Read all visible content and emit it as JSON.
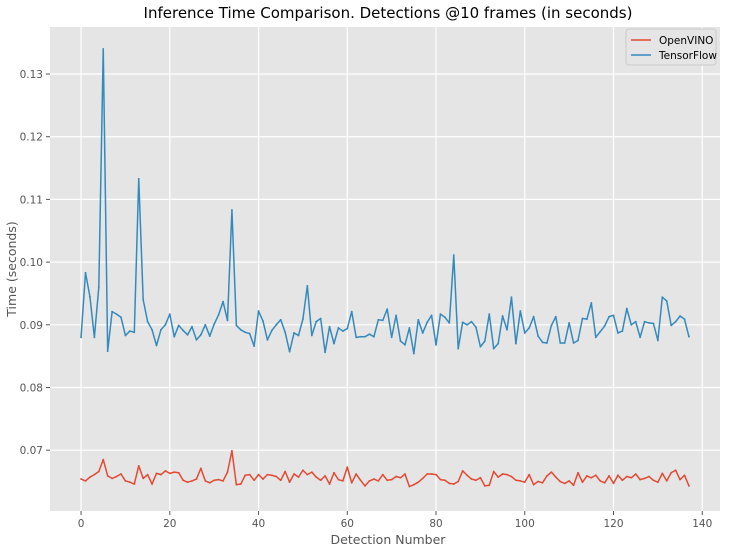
{
  "chart_data": {
    "type": "line",
    "title": "Inference Time Comparison. Detections @10 frames (in seconds)",
    "xlabel": "Detection Number",
    "ylabel": "Time (seconds)",
    "xlim": [
      -7,
      144
    ],
    "ylim": [
      0.0603,
      0.1375
    ],
    "xticks": [
      0,
      20,
      40,
      60,
      80,
      100,
      120,
      140
    ],
    "yticks": [
      0.07,
      0.08,
      0.09,
      0.1,
      0.11,
      0.12,
      0.13
    ],
    "ytick_labels": [
      "0.07",
      "0.08",
      "0.09",
      "0.10",
      "0.11",
      "0.12",
      "0.13"
    ],
    "grid": true,
    "legend_position": "top-right",
    "series": [
      {
        "name": "OpenVINO",
        "color": "#E24A33",
        "x": [
          0,
          1,
          2,
          3,
          4,
          5,
          6,
          7,
          8,
          9,
          10,
          11,
          12,
          13,
          14,
          15,
          16,
          17,
          18,
          19,
          20,
          21,
          22,
          23,
          24,
          25,
          26,
          27,
          28,
          29,
          30,
          31,
          32,
          33,
          34,
          35,
          36,
          37,
          38,
          39,
          40,
          41,
          42,
          43,
          44,
          45,
          46,
          47,
          48,
          49,
          50,
          51,
          52,
          53,
          54,
          55,
          56,
          57,
          58,
          59,
          60,
          61,
          62,
          63,
          64,
          65,
          66,
          67,
          68,
          69,
          70,
          71,
          72,
          73,
          74,
          75,
          76,
          77,
          78,
          79,
          80,
          81,
          82,
          83,
          84,
          85,
          86,
          87,
          88,
          89,
          90,
          91,
          92,
          93,
          94,
          95,
          96,
          97,
          98,
          99,
          100,
          101,
          102,
          103,
          104,
          105,
          106,
          107,
          108,
          109,
          110,
          111,
          112,
          113,
          114,
          115,
          116,
          117,
          118,
          119,
          120,
          121,
          122,
          123,
          124,
          125,
          126,
          127,
          128,
          129,
          130,
          131,
          132,
          133,
          134,
          135,
          136,
          137
        ],
        "values": [
          0.0654,
          0.0651,
          0.0657,
          0.0661,
          0.0666,
          0.0685,
          0.0659,
          0.0655,
          0.0658,
          0.0662,
          0.0651,
          0.0649,
          0.0646,
          0.0675,
          0.0655,
          0.0661,
          0.0646,
          0.0663,
          0.0661,
          0.0667,
          0.0663,
          0.0665,
          0.0664,
          0.0652,
          0.0649,
          0.0651,
          0.0654,
          0.0671,
          0.0651,
          0.0648,
          0.0652,
          0.0653,
          0.0651,
          0.0665,
          0.0699,
          0.0645,
          0.0646,
          0.066,
          0.0661,
          0.0652,
          0.0661,
          0.0654,
          0.0661,
          0.066,
          0.0658,
          0.0652,
          0.0666,
          0.0649,
          0.0662,
          0.0657,
          0.0668,
          0.0661,
          0.0665,
          0.0657,
          0.0652,
          0.0659,
          0.0646,
          0.0664,
          0.0653,
          0.0651,
          0.0673,
          0.0648,
          0.0662,
          0.0652,
          0.0643,
          0.0651,
          0.0654,
          0.0651,
          0.0661,
          0.0652,
          0.0653,
          0.0658,
          0.0656,
          0.0662,
          0.0642,
          0.0645,
          0.0649,
          0.0655,
          0.0662,
          0.0662,
          0.0661,
          0.0653,
          0.0652,
          0.0647,
          0.0646,
          0.065,
          0.0667,
          0.066,
          0.0654,
          0.0652,
          0.0656,
          0.0643,
          0.0644,
          0.0666,
          0.0657,
          0.0662,
          0.0661,
          0.0658,
          0.0652,
          0.0651,
          0.0649,
          0.0661,
          0.0645,
          0.065,
          0.0648,
          0.0659,
          0.0665,
          0.0657,
          0.065,
          0.0647,
          0.0651,
          0.0644,
          0.0664,
          0.0649,
          0.0659,
          0.0656,
          0.066,
          0.0651,
          0.0648,
          0.0659,
          0.0647,
          0.066,
          0.0652,
          0.0658,
          0.0656,
          0.0662,
          0.0653,
          0.0655,
          0.0658,
          0.0652,
          0.0649,
          0.0663,
          0.0651,
          0.0664,
          0.0668,
          0.0653,
          0.066,
          0.0643
        ]
      },
      {
        "name": "TensorFlow",
        "color": "#348ABD",
        "x": [
          0,
          1,
          2,
          3,
          4,
          5,
          6,
          7,
          8,
          9,
          10,
          11,
          12,
          13,
          14,
          15,
          16,
          17,
          18,
          19,
          20,
          21,
          22,
          23,
          24,
          25,
          26,
          27,
          28,
          29,
          30,
          31,
          32,
          33,
          34,
          35,
          36,
          37,
          38,
          39,
          40,
          41,
          42,
          43,
          44,
          45,
          46,
          47,
          48,
          49,
          50,
          51,
          52,
          53,
          54,
          55,
          56,
          57,
          58,
          59,
          60,
          61,
          62,
          63,
          64,
          65,
          66,
          67,
          68,
          69,
          70,
          71,
          72,
          73,
          74,
          75,
          76,
          77,
          78,
          79,
          80,
          81,
          82,
          83,
          84,
          85,
          86,
          87,
          88,
          89,
          90,
          91,
          92,
          93,
          94,
          95,
          96,
          97,
          98,
          99,
          100,
          101,
          102,
          103,
          104,
          105,
          106,
          107,
          108,
          109,
          110,
          111,
          112,
          113,
          114,
          115,
          116,
          117,
          118,
          119,
          120,
          121,
          122,
          123,
          124,
          125,
          126,
          127,
          128,
          129,
          130,
          131,
          132,
          133,
          134,
          135,
          136,
          137
        ],
        "values": [
          0.088,
          0.0983,
          0.0945,
          0.088,
          0.096,
          0.134,
          0.0858,
          0.0921,
          0.0917,
          0.0912,
          0.0883,
          0.089,
          0.0888,
          0.1133,
          0.094,
          0.0905,
          0.0892,
          0.0867,
          0.0892,
          0.09,
          0.0917,
          0.0881,
          0.0899,
          0.0891,
          0.0884,
          0.0897,
          0.0876,
          0.0884,
          0.09,
          0.0882,
          0.0901,
          0.0916,
          0.0937,
          0.0907,
          0.1083,
          0.0899,
          0.0892,
          0.0888,
          0.0886,
          0.0866,
          0.0922,
          0.0906,
          0.0876,
          0.0891,
          0.09,
          0.0908,
          0.0888,
          0.0857,
          0.0887,
          0.0883,
          0.0909,
          0.0962,
          0.0883,
          0.0905,
          0.091,
          0.0856,
          0.0897,
          0.087,
          0.0895,
          0.089,
          0.0894,
          0.0921,
          0.088,
          0.0881,
          0.0881,
          0.0885,
          0.0881,
          0.0908,
          0.0907,
          0.0925,
          0.088,
          0.0915,
          0.0874,
          0.0868,
          0.0895,
          0.0854,
          0.0908,
          0.0887,
          0.0904,
          0.0915,
          0.0868,
          0.0917,
          0.0912,
          0.0903,
          0.1011,
          0.0862,
          0.0904,
          0.09,
          0.0905,
          0.0896,
          0.0865,
          0.0874,
          0.0917,
          0.0862,
          0.087,
          0.0914,
          0.0892,
          0.0944,
          0.087,
          0.0922,
          0.0887,
          0.0895,
          0.0913,
          0.0882,
          0.0872,
          0.0871,
          0.0899,
          0.0913,
          0.0871,
          0.0871,
          0.0903,
          0.0871,
          0.0875,
          0.091,
          0.0909,
          0.0935,
          0.088,
          0.0889,
          0.0898,
          0.0913,
          0.0915,
          0.0887,
          0.089,
          0.0926,
          0.09,
          0.0905,
          0.088,
          0.0905,
          0.0903,
          0.0902,
          0.0875,
          0.0944,
          0.0938,
          0.0899,
          0.0905,
          0.0914,
          0.0909,
          0.0881
        ]
      }
    ]
  }
}
